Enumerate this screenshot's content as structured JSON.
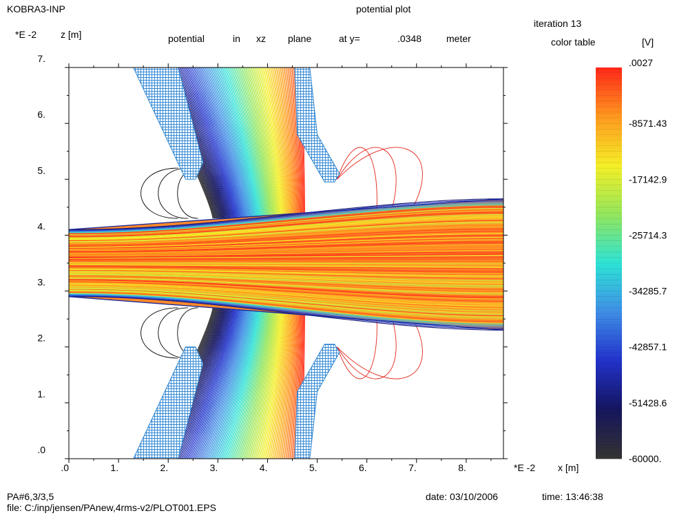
{
  "header": {
    "program": "KOBRA3-INP",
    "plot_kind": "potential plot",
    "iteration": "iteration 13",
    "color_table_label": "color table",
    "unit_label": "[V]"
  },
  "subtitle": {
    "z_scale": "*E  -2",
    "z_label": "z [m]",
    "w1": "potential",
    "w2": "in",
    "w3": "xz",
    "w4": "plane",
    "w5": "at y=",
    "w6": ".0348",
    "w7": "meter"
  },
  "x_axis": {
    "scale": "*E  -2",
    "label": "x [m]"
  },
  "footer": {
    "ref": "PA#6,3/3,5",
    "file": "file:  C:/inp/jensen/PAnew,4rms-v2/PLOT001.EPS",
    "date": "date: 03/10/2006",
    "time": "time: 13:46:38"
  },
  "chart_data": {
    "type": "contour",
    "title": "potential plot",
    "plane": "xz",
    "y_value_m": 0.0348,
    "xlabel": "x [m]",
    "ylabel": "z [m]",
    "axis_multiplier": "*E -2",
    "xlim": [
      0,
      8.75
    ],
    "ylim": [
      0,
      7.0
    ],
    "x_ticks": [
      ".0",
      "1.",
      "2.",
      "3.",
      "4.",
      "5.",
      "6.",
      "7.",
      "8."
    ],
    "z_ticks": [
      ".0",
      "1.",
      "2.",
      "3.",
      "4.",
      "5.",
      "6.",
      "7."
    ],
    "colorbar": {
      "unit": "[V]",
      "range": [
        -60000,
        0.0027
      ],
      "tick_labels": [
        ".0027",
        "-8571.43",
        "-17142.9",
        "-25714.3",
        "-34285.7",
        "-42857.1",
        "-51428.6",
        "-60000."
      ],
      "color_stops": [
        "#ff2a1a",
        "#ff9a1f",
        "#f5ef27",
        "#93e65c",
        "#2ee3d6",
        "#3f8fe6",
        "#2233cc",
        "#151560",
        "#333333"
      ]
    },
    "electrodes": {
      "fill": "#2d86d4",
      "left_upper": [
        [
          1.3,
          7.0
        ],
        [
          2.2,
          7.0
        ],
        [
          2.7,
          5.3
        ],
        [
          2.55,
          5.0
        ],
        [
          2.35,
          5.0
        ]
      ],
      "right_upper": [
        [
          4.55,
          7.0
        ],
        [
          4.85,
          7.0
        ],
        [
          5.0,
          5.8
        ],
        [
          5.45,
          5.1
        ],
        [
          5.35,
          4.95
        ],
        [
          5.15,
          4.95
        ],
        [
          4.6,
          5.8
        ]
      ],
      "left_lower": [
        [
          1.3,
          0.0
        ],
        [
          2.2,
          0.0
        ],
        [
          2.7,
          1.7
        ],
        [
          2.55,
          2.0
        ],
        [
          2.35,
          2.0
        ]
      ],
      "right_lower": [
        [
          4.55,
          0.0
        ],
        [
          4.85,
          0.0
        ],
        [
          5.0,
          1.2
        ],
        [
          5.45,
          1.9
        ],
        [
          5.35,
          2.05
        ],
        [
          5.15,
          2.05
        ],
        [
          4.6,
          1.2
        ]
      ]
    },
    "beam": {
      "axis_z": 3.5,
      "top_z_at_xmin": 4.1,
      "top_z_at_xmax": 4.65,
      "bottom_z_at_xmin": 2.9,
      "bottom_z_at_xmax": 2.3
    },
    "equipotential_count": 150
  }
}
